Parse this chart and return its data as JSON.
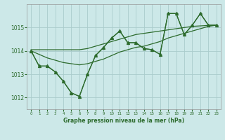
{
  "title": "Graphe pression niveau de la mer (hPa)",
  "background_color": "#cce8e8",
  "grid_color": "#aacccc",
  "line_color": "#2d6b2d",
  "xlim": [
    -0.5,
    23.5
  ],
  "ylim": [
    1011.5,
    1016.0
  ],
  "yticks": [
    1012,
    1013,
    1014,
    1015
  ],
  "xticks": [
    0,
    1,
    2,
    3,
    4,
    5,
    6,
    7,
    8,
    9,
    10,
    11,
    12,
    13,
    14,
    15,
    16,
    17,
    18,
    19,
    20,
    21,
    22,
    23
  ],
  "series_plus": {
    "x": [
      0,
      1,
      2,
      3,
      4,
      5,
      6,
      7,
      8,
      9,
      10,
      11,
      12,
      13,
      14,
      15,
      16,
      17,
      18,
      19,
      20,
      21,
      22,
      23
    ],
    "y": [
      1014.0,
      1013.35,
      1013.35,
      1013.1,
      1012.7,
      1012.2,
      1012.05,
      1013.0,
      1013.8,
      1014.15,
      1014.55,
      1014.85,
      1014.35,
      1014.35,
      1014.1,
      1014.05,
      1013.85,
      1015.6,
      1015.6,
      1014.7,
      1015.1,
      1015.6,
      1015.1,
      1015.1
    ]
  },
  "series_smooth1": {
    "x": [
      0,
      1,
      2,
      3,
      4,
      5,
      6,
      7,
      8,
      9,
      10,
      11,
      12,
      13,
      14,
      15,
      16,
      17,
      18,
      19,
      20,
      21,
      22,
      23
    ],
    "y": [
      1014.0,
      1013.85,
      1013.7,
      1013.6,
      1013.5,
      1013.45,
      1013.4,
      1013.45,
      1013.55,
      1013.65,
      1013.8,
      1013.95,
      1014.05,
      1014.15,
      1014.2,
      1014.3,
      1014.4,
      1014.55,
      1014.65,
      1014.75,
      1014.85,
      1014.95,
      1015.05,
      1015.1
    ]
  },
  "series_smooth2": {
    "x": [
      0,
      1,
      2,
      3,
      4,
      5,
      6,
      7,
      8,
      9,
      10,
      11,
      12,
      13,
      14,
      15,
      16,
      17,
      18,
      19,
      20,
      21,
      22,
      23
    ],
    "y": [
      1014.05,
      1014.05,
      1014.05,
      1014.05,
      1014.05,
      1014.05,
      1014.05,
      1014.1,
      1014.2,
      1014.3,
      1014.4,
      1014.5,
      1014.6,
      1014.7,
      1014.75,
      1014.8,
      1014.85,
      1014.9,
      1014.95,
      1015.0,
      1015.05,
      1015.07,
      1015.09,
      1015.1
    ]
  },
  "series_tri": {
    "x": [
      0,
      1,
      2,
      3,
      4,
      5,
      6,
      7,
      8,
      9,
      10,
      11,
      12,
      13,
      14,
      15,
      16,
      17,
      18,
      19,
      20,
      21,
      22,
      23
    ],
    "y": [
      1014.0,
      1013.35,
      1013.35,
      1013.1,
      1012.7,
      1012.2,
      1012.05,
      1013.0,
      1013.8,
      1014.15,
      1014.55,
      1014.85,
      1014.35,
      1014.35,
      1014.1,
      1014.05,
      1013.85,
      1015.6,
      1015.6,
      1014.7,
      1015.1,
      1015.6,
      1015.1,
      1015.1
    ]
  }
}
